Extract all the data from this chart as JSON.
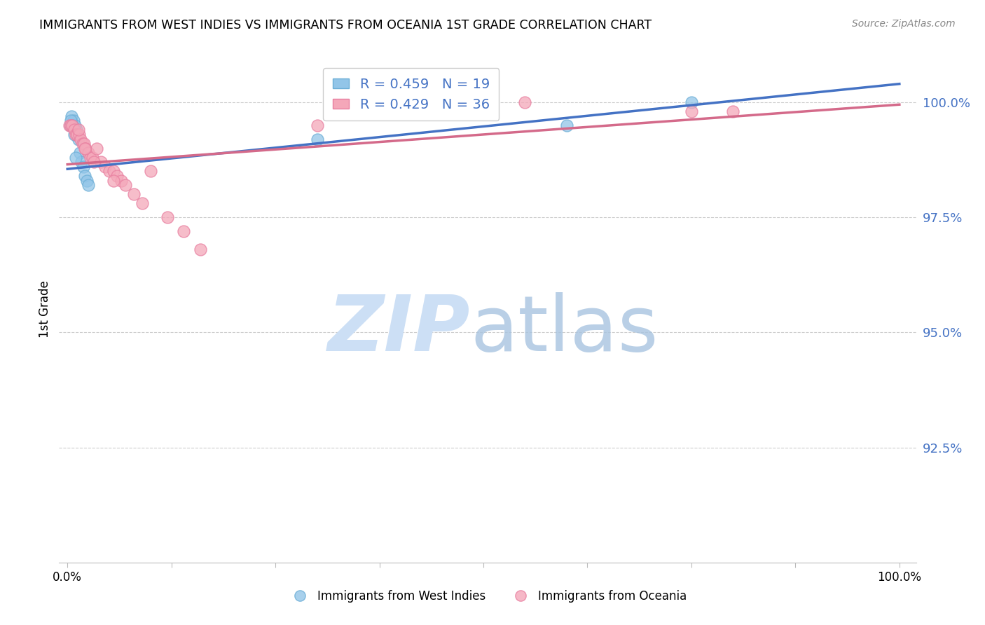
{
  "title": "IMMIGRANTS FROM WEST INDIES VS IMMIGRANTS FROM OCEANIA 1ST GRADE CORRELATION CHART",
  "source_text": "Source: ZipAtlas.com",
  "ylabel": "1st Grade",
  "legend_r_blue": "0.459",
  "legend_n_blue": 19,
  "legend_r_pink": "0.429",
  "legend_n_pink": 36,
  "blue_color": "#92c5e8",
  "pink_color": "#f4a7b9",
  "blue_edge_color": "#6baed6",
  "pink_edge_color": "#e87fa0",
  "blue_line_color": "#4472c4",
  "pink_line_color": "#d46a8a",
  "watermark_zip_color": "#ccdff5",
  "watermark_atlas_color": "#a8c4e0",
  "ytick_color": "#4472c4",
  "blue_label": "Immigrants from West Indies",
  "pink_label": "Immigrants from Oceania",
  "blue_x": [
    0.3,
    0.5,
    0.7,
    0.9,
    1.1,
    1.3,
    1.5,
    1.7,
    1.9,
    2.1,
    2.3,
    2.5,
    0.4,
    0.6,
    0.8,
    1.0,
    30.0,
    60.0,
    75.0
  ],
  "blue_y": [
    99.5,
    99.7,
    99.6,
    99.5,
    99.4,
    99.2,
    98.9,
    98.7,
    98.6,
    98.4,
    98.3,
    98.2,
    99.6,
    99.5,
    99.3,
    98.8,
    99.2,
    99.5,
    100.0
  ],
  "pink_x": [
    0.2,
    0.4,
    0.6,
    0.8,
    1.0,
    1.2,
    1.4,
    1.6,
    1.8,
    2.0,
    2.2,
    2.5,
    2.8,
    3.0,
    3.5,
    4.0,
    4.5,
    5.0,
    5.5,
    6.0,
    6.5,
    7.0,
    8.0,
    9.0,
    10.0,
    12.0,
    14.0,
    16.0,
    1.3,
    2.1,
    3.2,
    5.5,
    55.0,
    75.0,
    80.0,
    30.0
  ],
  "pink_y": [
    99.5,
    99.5,
    99.5,
    99.4,
    99.3,
    99.3,
    99.3,
    99.2,
    99.1,
    99.1,
    99.0,
    98.9,
    98.8,
    98.8,
    99.0,
    98.7,
    98.6,
    98.5,
    98.5,
    98.4,
    98.3,
    98.2,
    98.0,
    97.8,
    98.5,
    97.5,
    97.2,
    96.8,
    99.4,
    99.0,
    98.7,
    98.3,
    100.0,
    99.8,
    99.8,
    99.5
  ],
  "blue_line_x0": 0.0,
  "blue_line_y0": 98.55,
  "blue_line_x1": 100.0,
  "blue_line_y1": 100.4,
  "pink_line_x0": 0.0,
  "pink_line_y0": 98.65,
  "pink_line_x1": 100.0,
  "pink_line_y1": 99.95,
  "xlim_left": -1.0,
  "xlim_right": 102.0,
  "ylim_bottom": 90.0,
  "ylim_top": 101.0,
  "ytick_vals": [
    92.5,
    95.0,
    97.5,
    100.0
  ],
  "ytick_labels": [
    "92.5%",
    "95.0%",
    "97.5%",
    "100.0%"
  ]
}
